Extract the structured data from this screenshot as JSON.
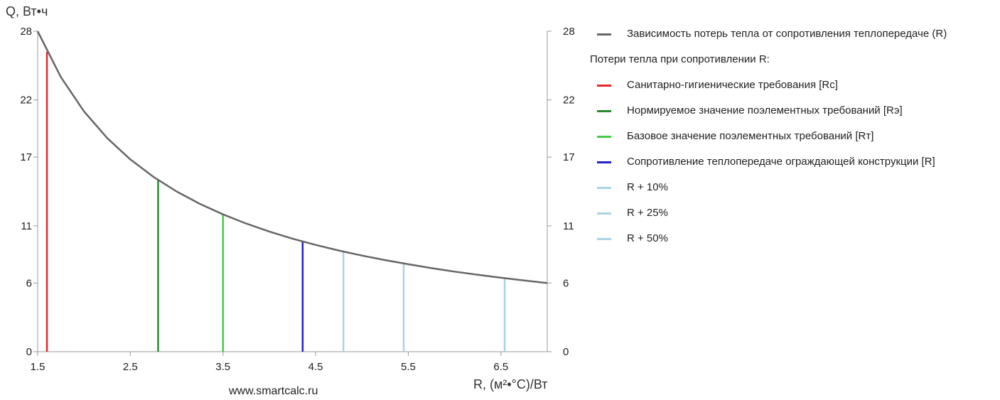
{
  "chart_data": {
    "type": "line",
    "y_axis_title": "Q, Вт•ч",
    "x_axis_title": "R, (м²•°С)/Вт",
    "watermark": "www.smartcalc.ru",
    "xlim": [
      1.5,
      7.0
    ],
    "ylim": [
      0,
      28
    ],
    "x_ticks": [
      1.5,
      2.5,
      3.5,
      4.5,
      5.5,
      6.5
    ],
    "x_tick_labels": [
      "1.5",
      "2.5",
      "3.5",
      "4.5",
      "5.5",
      "6.5"
    ],
    "y_ticks": [
      0,
      6,
      11,
      17,
      22,
      28
    ],
    "y_tick_labels": [
      "0",
      "6",
      "11",
      "17",
      "22",
      "28"
    ],
    "curve": {
      "name": "Зависимость потерь тепла от сопротивления теплопередаче (R)",
      "color": "#666666",
      "x": [
        1.5,
        1.75,
        2.0,
        2.25,
        2.5,
        2.75,
        3.0,
        3.25,
        3.5,
        3.75,
        4.0,
        4.25,
        4.5,
        4.75,
        5.0,
        5.25,
        5.5,
        5.75,
        6.0,
        6.25,
        6.5,
        6.75,
        7.0
      ],
      "y": [
        28.0,
        24.0,
        21.0,
        18.67,
        16.8,
        15.27,
        14.0,
        12.92,
        12.0,
        11.2,
        10.5,
        9.88,
        9.33,
        8.84,
        8.4,
        8.0,
        7.64,
        7.3,
        7.0,
        6.72,
        6.46,
        6.22,
        6.0
      ]
    },
    "legend_heading": "Потери тепла при сопротивлении R:",
    "vertical_lines": [
      {
        "name": "Санитарно-гигиенические требования [Rc]",
        "x": 1.6,
        "y": 26.2,
        "color": "#e8262a"
      },
      {
        "name": "Нормируемое значение поэлементных требований [Rэ]",
        "x": 2.8,
        "y": 15.0,
        "color": "#2a8a2a"
      },
      {
        "name": "Базовое значение поэлементных требований [Rт]",
        "x": 3.5,
        "y": 12.0,
        "color": "#44cc44"
      },
      {
        "name": "Сопротивление теплопередаче ограждающей конструкции [R]",
        "x": 4.36,
        "y": 9.63,
        "color": "#2222cc"
      },
      {
        "name": "R + 10%",
        "x": 4.8,
        "y": 8.75,
        "color": "#a8d4e6"
      },
      {
        "name": "R + 25%",
        "x": 5.45,
        "y": 7.71,
        "color": "#a8d4e6"
      },
      {
        "name": "R + 50%",
        "x": 6.54,
        "y": 6.42,
        "color": "#a8d4e6"
      }
    ]
  }
}
